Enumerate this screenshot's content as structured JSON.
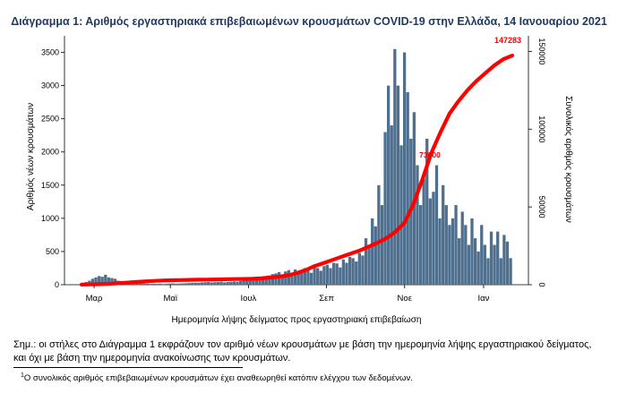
{
  "chart_data": {
    "type": "bar",
    "title": "Διάγραμμα 1: Αριθμός εργαστηριακά επιβεβαιωμένων κρουσμάτων COVID-19 στην Ελλάδα, 14 Ιανουαρίου 2021",
    "xlabel": "Ημερομηνία λήψης δείγματος προς εργαστηριακή επιβεβαίωση",
    "ylabel": "Αριθμός νέων κρουσμάτων",
    "ylabel_right": "Συνολικός αριθμός κρουσμάτων",
    "ylim": [
      0,
      3750
    ],
    "ylim_right": [
      0,
      160000
    ],
    "y_ticks": [
      0,
      500,
      1000,
      1500,
      2000,
      2500,
      3000,
      3500
    ],
    "y_ticks_right": [
      0,
      50000,
      100000,
      150000
    ],
    "x_tick_labels": [
      "Μαρ",
      "Μαϊ",
      "Ιουλ",
      "Σεπ",
      "Νοε",
      "Ιαν"
    ],
    "x_tick_weeks": [
      1.4,
      9.9,
      18.6,
      27.3,
      36.0,
      44.8
    ],
    "bar_color": "#4f6f8f",
    "line_color": "#ff0000",
    "series": [
      {
        "name": "",
        "kind": "bar",
        "note": "Daily new cases by sampling date, sampled every ~3.5 days",
        "values": [
          20,
          40,
          60,
          90,
          110,
          130,
          120,
          150,
          110,
          100,
          90,
          60,
          50,
          40,
          30,
          25,
          20,
          25,
          20,
          18,
          15,
          12,
          15,
          12,
          15,
          10,
          15,
          18,
          20,
          15,
          18,
          20,
          22,
          25,
          28,
          30,
          30,
          35,
          38,
          40,
          35,
          38,
          40,
          45,
          35,
          40,
          45,
          50,
          45,
          55,
          60,
          70,
          65,
          80,
          90,
          100,
          110,
          130,
          140,
          160,
          170,
          190,
          150,
          200,
          220,
          180,
          230,
          190,
          210,
          250,
          230,
          180,
          260,
          250,
          210,
          280,
          300,
          250,
          330,
          320,
          260,
          380,
          330,
          420,
          400,
          350,
          480,
          440,
          700,
          560,
          1000,
          880,
          1500,
          1200,
          2300,
          3000,
          2400,
          3550,
          3000,
          2100,
          3500,
          2900,
          2200,
          2600,
          1800,
          1200,
          1600,
          2200,
          1300,
          1400,
          1800,
          1000,
          1500,
          1200,
          900,
          1000,
          1200,
          700,
          1100,
          900,
          600,
          1000,
          700,
          500,
          900,
          600,
          400,
          800,
          600,
          800,
          400,
          750,
          650,
          400
        ]
      },
      {
        "name": "",
        "kind": "line",
        "note": "Cumulative total cases (right axis)",
        "values": [
          50,
          170,
          350,
          600,
          950,
          1300,
          1700,
          2100,
          2400,
          2700,
          2900,
          3000,
          3100,
          3200,
          3300,
          3400,
          3500,
          3600,
          3700,
          3800,
          4100,
          4600,
          5200,
          6000,
          7500,
          9500,
          12000,
          14000,
          16000,
          18000,
          20000,
          22000,
          24500,
          27000,
          30000,
          34000,
          40000,
          52000,
          68000,
          85000,
          98000,
          110000,
          118000,
          125000,
          131000,
          136000,
          141000,
          145000,
          147283
        ]
      }
    ],
    "annotations": [
      "147283",
      "73000"
    ]
  },
  "note_text": "Σημ.: οι στήλες στο Διάγραμμα 1 εκφράζουν τον αριθμό νέων κρουσμάτων με βάση την ημερομηνία λήψης εργαστηριακού δείγματος, και όχι με βάση την ημερομηνία ανακοίνωσης των κρουσμάτων.",
  "footnote_mark": "1",
  "footnote_text": "Ο συνολικός αριθμός επιβεβαιωμένων κρουσμάτων έχει αναθεωρηθεί κατόπιν ελέγχου των δεδομένων."
}
